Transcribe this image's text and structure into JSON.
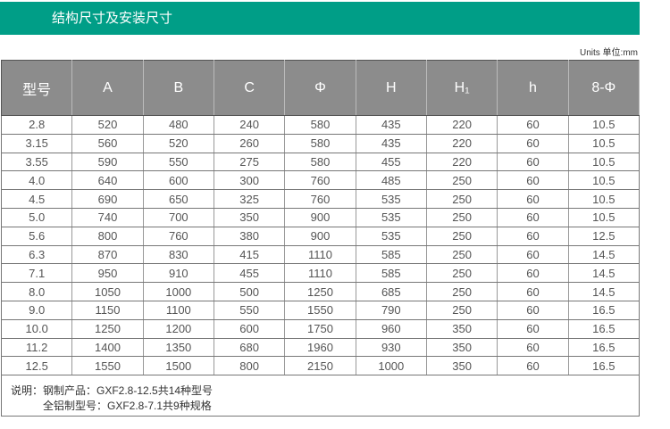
{
  "title": "结构尺寸及安装尺寸",
  "units": "Units 单位:mm",
  "headers": [
    "型号",
    "A",
    "B",
    "C",
    "Φ",
    "H",
    "H₁",
    "h",
    "8-Φ"
  ],
  "rows": [
    [
      "2.8",
      "520",
      "480",
      "240",
      "580",
      "435",
      "220",
      "60",
      "10.5"
    ],
    [
      "3.15",
      "560",
      "520",
      "260",
      "580",
      "435",
      "220",
      "60",
      "10.5"
    ],
    [
      "3.55",
      "590",
      "550",
      "275",
      "580",
      "455",
      "220",
      "60",
      "10.5"
    ],
    [
      "4.0",
      "640",
      "600",
      "300",
      "760",
      "485",
      "250",
      "60",
      "10.5"
    ],
    [
      "4.5",
      "690",
      "650",
      "325",
      "760",
      "535",
      "250",
      "60",
      "10.5"
    ],
    [
      "5.0",
      "740",
      "700",
      "350",
      "900",
      "535",
      "250",
      "60",
      "10.5"
    ],
    [
      "5.6",
      "800",
      "760",
      "380",
      "900",
      "535",
      "250",
      "60",
      "12.5"
    ],
    [
      "6.3",
      "870",
      "830",
      "415",
      "1110",
      "585",
      "250",
      "60",
      "14.5"
    ],
    [
      "7.1",
      "950",
      "910",
      "455",
      "1110",
      "585",
      "250",
      "60",
      "14.5"
    ],
    [
      "8.0",
      "1050",
      "1000",
      "500",
      "1250",
      "685",
      "250",
      "60",
      "14.5"
    ],
    [
      "9.0",
      "1150",
      "1100",
      "550",
      "1550",
      "790",
      "250",
      "60",
      "16.5"
    ],
    [
      "10.0",
      "1250",
      "1200",
      "600",
      "1750",
      "960",
      "350",
      "60",
      "16.5"
    ],
    [
      "11.2",
      "1400",
      "1350",
      "680",
      "1960",
      "930",
      "350",
      "60",
      "16.5"
    ],
    [
      "12.5",
      "1550",
      "1500",
      "800",
      "2150",
      "1000",
      "350",
      "60",
      "16.5"
    ]
  ],
  "note": {
    "line1": "说明：钢制产品：GXF2.8-12.5共14种型号",
    "line2": "全铝制型号：GXF2.8-7.1共9种规格"
  },
  "colors": {
    "title_bg": "#009e87",
    "header_bg": "#8c8c8c"
  }
}
